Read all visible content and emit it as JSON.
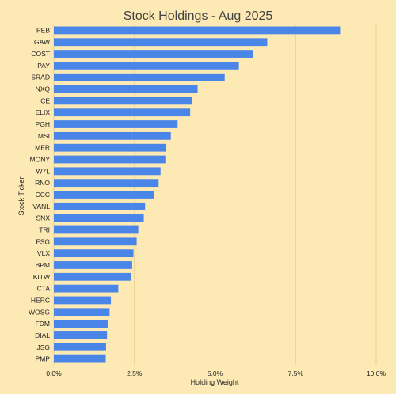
{
  "chart_data": {
    "type": "bar",
    "orientation": "horizontal",
    "title": "Stock Holdings - Aug 2025",
    "xlabel": "Holding Weight",
    "ylabel": "Stock Ticker",
    "xlim": [
      0,
      10
    ],
    "xticks": [
      0,
      2.5,
      5,
      7.5,
      10
    ],
    "xtick_labels": [
      "0.0%",
      "2.5%",
      "5.0%",
      "7.5%",
      "10.0%"
    ],
    "grid": true,
    "categories": [
      "PEB",
      "GAW",
      "COST",
      "PAY",
      "SRAD",
      "NXQ",
      "CE",
      "ELIX",
      "PGH",
      "MSI",
      "MER",
      "MONY",
      "W7L",
      "RNO",
      "CCC",
      "VANL",
      "SNX",
      "TRI",
      "FSG",
      "VLX",
      "BPM",
      "KITW",
      "CTA",
      "HERC",
      "WOSG",
      "FDM",
      "DIAL",
      "JSG",
      "PMP"
    ],
    "values": [
      8.88,
      6.62,
      6.18,
      5.74,
      5.3,
      4.46,
      4.29,
      4.23,
      3.84,
      3.63,
      3.49,
      3.46,
      3.31,
      3.25,
      3.1,
      2.83,
      2.79,
      2.62,
      2.57,
      2.47,
      2.43,
      2.39,
      2.0,
      1.77,
      1.73,
      1.67,
      1.65,
      1.62,
      1.61
    ],
    "colors": {
      "background": "#fde9b3",
      "bar": "#4a85e8",
      "grid": "#e6cf93",
      "title": "#444444",
      "text": "#222222"
    }
  }
}
